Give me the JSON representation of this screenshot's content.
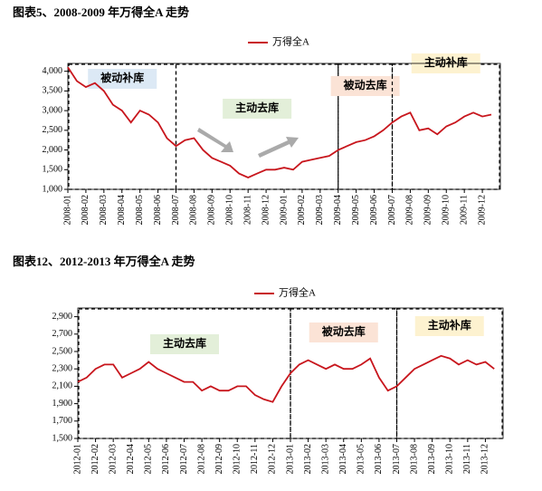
{
  "chart_data": [
    {
      "type": "line",
      "title": "图表5、2008-2009 年万得全A 走势",
      "categories": [
        "2008-01",
        null,
        "2008-02",
        null,
        "2008-03",
        null,
        "2008-04",
        null,
        "2008-05",
        null,
        "2008-06",
        null,
        "2008-07",
        null,
        "2008-08",
        null,
        "2008-09",
        null,
        "2008-10",
        null,
        "2008-11",
        null,
        "2008-12",
        null,
        "2009-01",
        null,
        "2009-02",
        null,
        "2009-03",
        null,
        "2009-04",
        null,
        "2009-05",
        null,
        "2009-06",
        null,
        "2009-07",
        null,
        "2009-08",
        null,
        "2009-09",
        null,
        "2009-10",
        null,
        "2009-11",
        null,
        "2009-12",
        null
      ],
      "series": [
        {
          "name": "万得全A",
          "color": "#c8161d",
          "values": [
            4100,
            3750,
            3600,
            3700,
            3500,
            3150,
            3000,
            2700,
            3000,
            2900,
            2700,
            2300,
            2100,
            2250,
            2300,
            2000,
            1800,
            1700,
            1600,
            1400,
            1300,
            1400,
            1500,
            1500,
            1550,
            1500,
            1700,
            1750,
            1800,
            1850,
            2000,
            2100,
            2200,
            2250,
            2350,
            2500,
            2700,
            2850,
            2950,
            2500,
            2550,
            2400,
            2600,
            2700,
            2850,
            2950,
            2850,
            2900
          ]
        }
      ],
      "ylim": [
        1000,
        4200
      ],
      "yticks": [
        {
          "value": 1000,
          "label": "1,000"
        },
        {
          "value": 1500,
          "label": "1,500"
        },
        {
          "value": 2000,
          "label": "2,000"
        },
        {
          "value": 2500,
          "label": "2,500"
        },
        {
          "value": 3000,
          "label": "3,000"
        },
        {
          "value": 3500,
          "label": "3,500"
        },
        {
          "value": 4000,
          "label": "4,000"
        }
      ],
      "legend": "top",
      "annotations": [
        {
          "text": "被动补库",
          "from": "2008-01",
          "color": "#dce9f5"
        },
        {
          "text": "主动去库",
          "from": "2008-07",
          "color": "#e3efd9"
        },
        {
          "text": "被动去库",
          "from": "2009-04",
          "color": "#fbe3d6"
        },
        {
          "text": "主动补库",
          "from": "2009-07",
          "color": "#fdf2d0"
        }
      ]
    },
    {
      "type": "line",
      "title": "图表12、2012-2013 年万得全A 走势",
      "categories": [
        "2012-01",
        null,
        "2012-02",
        null,
        "2012-03",
        null,
        "2012-04",
        null,
        "2012-05",
        null,
        "2012-06",
        null,
        "2012-07",
        null,
        "2012-08",
        null,
        "2012-09",
        null,
        "2012-10",
        null,
        "2012-11",
        null,
        "2012-12",
        null,
        "2013-01",
        null,
        "2013-02",
        null,
        "2013-03",
        null,
        "2013-04",
        null,
        "2013-05",
        null,
        "2013-06",
        null,
        "2013-07",
        null,
        "2013-08",
        null,
        "2013-09",
        null,
        "2013-10",
        null,
        "2013-11",
        null,
        "2013-12",
        null
      ],
      "series": [
        {
          "name": "万得全A",
          "color": "#c8161d",
          "values": [
            2150,
            2200,
            2300,
            2350,
            2350,
            2200,
            2250,
            2300,
            2380,
            2300,
            2250,
            2200,
            2150,
            2150,
            2050,
            2100,
            2050,
            2050,
            2100,
            2100,
            2000,
            1950,
            1920,
            2100,
            2250,
            2350,
            2400,
            2350,
            2300,
            2350,
            2300,
            2300,
            2350,
            2420,
            2200,
            2050,
            2100,
            2200,
            2300,
            2350,
            2400,
            2450,
            2420,
            2350,
            2400,
            2350,
            2380,
            2300
          ]
        }
      ],
      "ylim": [
        1500,
        3000
      ],
      "yticks": [
        {
          "value": 1500,
          "label": "1,500"
        },
        {
          "value": 1700,
          "label": "1,700"
        },
        {
          "value": 1900,
          "label": "1,900"
        },
        {
          "value": 2100,
          "label": "2,100"
        },
        {
          "value": 2300,
          "label": "2,300"
        },
        {
          "value": 2500,
          "label": "2,500"
        },
        {
          "value": 2700,
          "label": "2,700"
        },
        {
          "value": 2900,
          "label": "2,900"
        }
      ],
      "legend": "top",
      "annotations": [
        {
          "text": "主动去库",
          "from": "2012-01",
          "color": "#e3efd9"
        },
        {
          "text": "被动去库",
          "from": "2013-01",
          "color": "#fbe3d6"
        },
        {
          "text": "主动补库",
          "from": "2013-07",
          "color": "#fdf2d0"
        }
      ]
    }
  ]
}
